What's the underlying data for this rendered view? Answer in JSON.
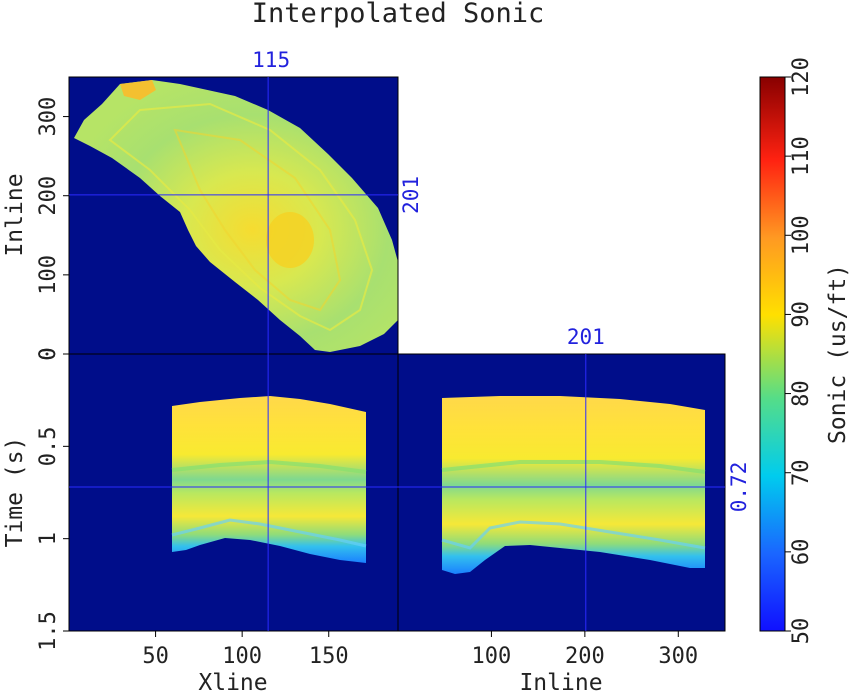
{
  "chart_data": {
    "type": "heatmap",
    "title": "Interpolated Sonic",
    "colors": {
      "background": "#000d8a",
      "crosshair": "#2a2aff",
      "label_blue": "#2222dd"
    },
    "depth_slice": {
      "ylabel": "Inline",
      "xrange": [
        0,
        190
      ],
      "yrange": [
        0,
        350
      ],
      "yticks": [
        0,
        100,
        200,
        300
      ],
      "yticklabels": [
        "0",
        "100",
        "200",
        "300"
      ],
      "slice_label": "0.72"
    },
    "inline_section": {
      "xlabel": "Xline",
      "ylabel": "Time (s)",
      "xrange": [
        0,
        190
      ],
      "yrange": [
        0,
        1.5
      ],
      "xticks": [
        50,
        100,
        150
      ],
      "xticklabels": [
        "50",
        "100",
        "150"
      ],
      "yticks": [
        0,
        0.5,
        1,
        1.5
      ],
      "yticklabels": [
        "0",
        "0.5",
        "1",
        "1.5"
      ],
      "slice_label": "201"
    },
    "xline_section": {
      "xlabel": "Inline",
      "xrange": [
        0,
        350
      ],
      "xticks": [
        100,
        200,
        300
      ],
      "xticklabels": [
        "100",
        "200",
        "300"
      ],
      "slice_label": "115"
    },
    "crosshair": {
      "xline": 115,
      "inline": 201,
      "time": 0.72
    },
    "colorbar": {
      "label": "Sonic (us/ft)",
      "range": [
        50,
        120
      ],
      "ticks": [
        50,
        60,
        70,
        80,
        90,
        100,
        110,
        120
      ],
      "ticklabels": [
        "50",
        "60",
        "70",
        "80",
        "90",
        "100",
        "110",
        "120"
      ]
    }
  }
}
